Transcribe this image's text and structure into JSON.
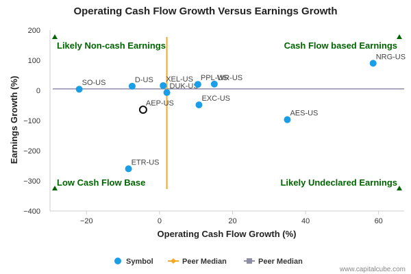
{
  "chart_data": {
    "type": "scatter",
    "title": "Operating Cash Flow Growth Versus Earnings Growth",
    "xlabel": "Operating Cash Flow Growth (%)",
    "ylabel": "Earnings Growth (%)",
    "xlim": [
      -30,
      67
    ],
    "ylim": [
      -400,
      200
    ],
    "x_ticks": [
      -20,
      0,
      20,
      40,
      60
    ],
    "y_ticks": [
      200,
      100,
      0,
      -100,
      -200,
      -300,
      -400
    ],
    "x_tick_labels": [
      "−20",
      "0",
      "20",
      "40",
      "60"
    ],
    "y_tick_labels": [
      "200",
      "100",
      "0",
      "−100",
      "−200",
      "−300",
      "−400"
    ],
    "points": [
      {
        "label": "SO-US",
        "x": -22,
        "y": 4
      },
      {
        "label": "D-US",
        "x": -7.5,
        "y": 14
      },
      {
        "label": "XEL-US",
        "x": 1,
        "y": 16
      },
      {
        "label": "DUK-US",
        "x": 2,
        "y": -7
      },
      {
        "label": "PPL-US",
        "x": 10.5,
        "y": 20
      },
      {
        "label": "WR-US",
        "x": 15,
        "y": 21
      },
      {
        "label": "EXC-US",
        "x": 10.8,
        "y": -48
      },
      {
        "label": "NRG-US",
        "x": 58.5,
        "y": 90
      },
      {
        "label": "AES-US",
        "x": 35,
        "y": -97
      },
      {
        "label": "ETR-US",
        "x": -8.5,
        "y": -260
      }
    ],
    "highlight": {
      "label": "AEP-US",
      "x": -4.5,
      "y": -64
    },
    "peer_median": {
      "x": 2,
      "y": 5
    },
    "quadrants": {
      "top_left": "Likely Non-cash Earnings",
      "top_right": "Cash Flow based Earnings",
      "bottom_left": "Low Cash Flow Base",
      "bottom_right": "Likely Undeclared Earnings"
    },
    "legend": {
      "placement": "bottom",
      "entries": [
        "Symbol",
        "Peer Median",
        "Peer Median"
      ]
    },
    "colors": {
      "point": "#1a9ee8",
      "x_median": "#f5a623",
      "y_median": "#8c8fa6",
      "quadrant": "#006400",
      "highlight_stroke": "#111111"
    },
    "grid": false
  },
  "credit": "www.capitalcube.com"
}
